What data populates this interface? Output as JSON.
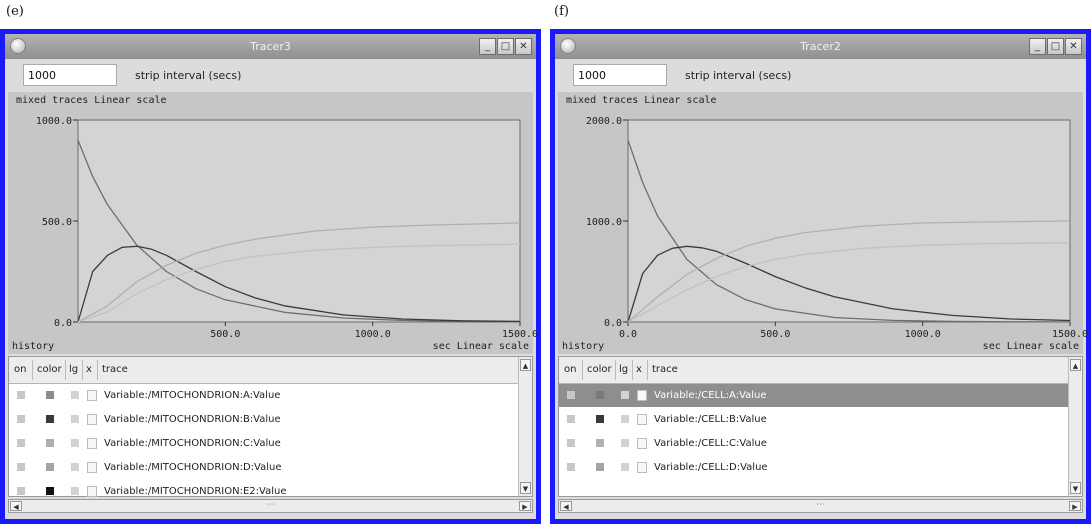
{
  "panels": [
    {
      "letter": "(e)",
      "title": "Tracer3",
      "interval_value": "1000",
      "interval_label": "strip interval (secs)",
      "trace_info": "mixed traces  Linear scale",
      "history_label": "history",
      "scale_label": "sec  Linear scale",
      "columns": [
        "on",
        "color",
        "lg",
        "x",
        "trace"
      ],
      "traces": [
        {
          "name": "Variable:/MITOCHONDRION:A:Value",
          "color": "#8c8c8c",
          "selected": false
        },
        {
          "name": "Variable:/MITOCHONDRION:B:Value",
          "color": "#3a3a3a",
          "selected": false
        },
        {
          "name": "Variable:/MITOCHONDRION:C:Value",
          "color": "#b0b0b0",
          "selected": false
        },
        {
          "name": "Variable:/MITOCHONDRION:D:Value",
          "color": "#a4a4a4",
          "selected": false
        },
        {
          "name": "Variable:/MITOCHONDRION:E2:Value",
          "color": "#111111",
          "selected": false
        }
      ],
      "chart_data": {
        "type": "line",
        "xlim": [
          0,
          1500
        ],
        "ylim": [
          0,
          1000
        ],
        "x_ticks": [
          "500.0",
          "1000.0",
          "1500.0"
        ],
        "y_ticks": [
          "0.0",
          "500.0",
          "1000.0"
        ],
        "grid": false,
        "series": [
          {
            "color": "#6e6e6e",
            "x": [
              0,
              50,
              100,
              200,
              300,
              400,
              500,
              700,
              900,
              1100,
              1300,
              1500
            ],
            "values": [
              900,
              720,
              580,
              380,
              250,
              165,
              110,
              48,
              20,
              8,
              3,
              1
            ]
          },
          {
            "color": "#3a3a3a",
            "x": [
              0,
              50,
              100,
              150,
              200,
              250,
              300,
              400,
              500,
              600,
              700,
              900,
              1100,
              1300,
              1500
            ],
            "values": [
              0,
              250,
              330,
              370,
              375,
              360,
              330,
              250,
              175,
              120,
              80,
              35,
              15,
              6,
              3
            ]
          },
          {
            "color": "#b0b0b0",
            "x": [
              0,
              100,
              200,
              300,
              400,
              500,
              600,
              800,
              1000,
              1200,
              1500
            ],
            "values": [
              0,
              80,
              200,
              280,
              340,
              380,
              410,
              450,
              470,
              480,
              490
            ]
          },
          {
            "color": "#c2c2c2",
            "x": [
              0,
              100,
              200,
              300,
              400,
              500,
              600,
              800,
              1000,
              1200,
              1500
            ],
            "values": [
              0,
              50,
              140,
              210,
              260,
              300,
              325,
              355,
              370,
              378,
              385
            ]
          }
        ]
      }
    },
    {
      "letter": "(f)",
      "title": "Tracer2",
      "interval_value": "1000",
      "interval_label": "strip interval (secs)",
      "trace_info": "mixed traces  Linear scale",
      "history_label": "history",
      "scale_label": "sec  Linear scale",
      "columns": [
        "on",
        "color",
        "lg",
        "x",
        "trace"
      ],
      "traces": [
        {
          "name": "Variable:/CELL:A:Value",
          "color": "#7a7a7a",
          "selected": true
        },
        {
          "name": "Variable:/CELL:B:Value",
          "color": "#3a3a3a",
          "selected": false
        },
        {
          "name": "Variable:/CELL:C:Value",
          "color": "#b0b0b0",
          "selected": false
        },
        {
          "name": "Variable:/CELL:D:Value",
          "color": "#a4a4a4",
          "selected": false
        }
      ],
      "chart_data": {
        "type": "line",
        "xlim": [
          0,
          1500
        ],
        "ylim": [
          0,
          2000
        ],
        "x_ticks": [
          "0.0",
          "500.0",
          "1000.0",
          "1500.0"
        ],
        "y_ticks": [
          "0.0",
          "1000.0",
          "2000.0"
        ],
        "grid": false,
        "series": [
          {
            "color": "#6e6e6e",
            "x": [
              0,
              50,
              100,
              200,
              300,
              400,
              500,
              700,
              900,
              1100,
              1300,
              1500
            ],
            "values": [
              1800,
              1380,
              1050,
              620,
              370,
              220,
              130,
              45,
              16,
              6,
              2,
              1
            ]
          },
          {
            "color": "#3a3a3a",
            "x": [
              0,
              50,
              100,
              150,
              200,
              250,
              300,
              400,
              500,
              600,
              700,
              900,
              1100,
              1300,
              1500
            ],
            "values": [
              0,
              480,
              660,
              730,
              750,
              735,
              700,
              580,
              450,
              340,
              250,
              130,
              65,
              30,
              15
            ]
          },
          {
            "color": "#b0b0b0",
            "x": [
              0,
              100,
              200,
              300,
              400,
              500,
              600,
              800,
              1000,
              1200,
              1500
            ],
            "values": [
              0,
              250,
              470,
              630,
              750,
              830,
              885,
              950,
              980,
              990,
              1000
            ]
          },
          {
            "color": "#c2c2c2",
            "x": [
              0,
              100,
              200,
              300,
              400,
              500,
              600,
              800,
              1000,
              1200,
              1500
            ],
            "values": [
              0,
              160,
              320,
              450,
              550,
              620,
              670,
              730,
              760,
              775,
              785
            ]
          }
        ]
      }
    }
  ],
  "icons": {
    "minimize": "_",
    "maximize": "□",
    "close": "✕",
    "scroll_up": "▲",
    "scroll_down": "▼",
    "scroll_left": "◀",
    "scroll_right": "▶",
    "grip": "⋯"
  }
}
